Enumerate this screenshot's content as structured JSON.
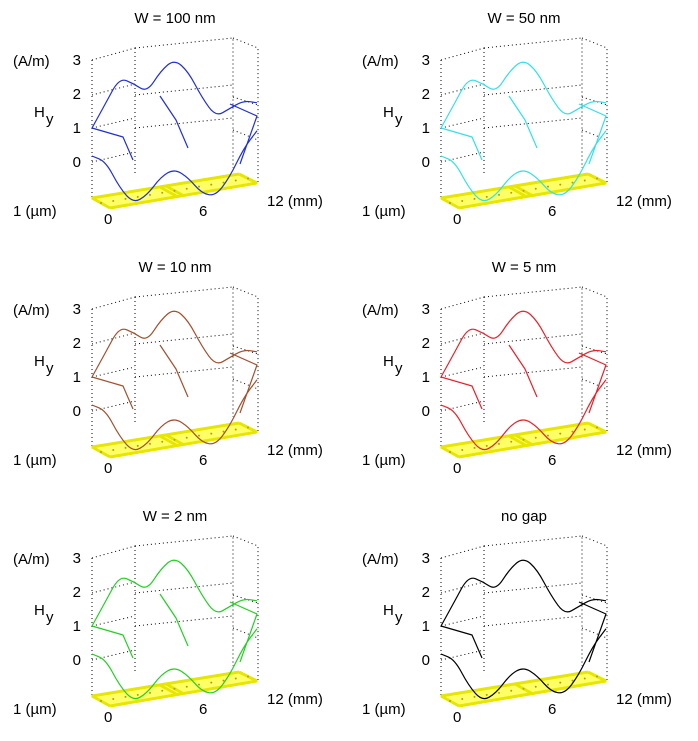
{
  "chart_data": [
    {
      "type": "line",
      "title": "W = 100 nm",
      "color": "#1f2fd6",
      "gap": true,
      "zlabel_unit": "(A/m)",
      "zlabel": "H",
      "zlabel_sub": "y",
      "z_ticks": [
        "3",
        "2",
        "1",
        "0"
      ],
      "x_tick_labels": [
        "0",
        "6",
        "12 (mm)"
      ],
      "y_tick_label": "1 (µm)",
      "x": [
        0,
        1,
        2,
        3,
        4,
        5,
        6,
        7,
        8,
        9,
        10,
        11,
        12
      ],
      "series": [
        {
          "values": [
            1.0,
            1.7,
            2.4,
            2.2,
            1.9,
            2.5,
            2.8,
            2.4,
            1.6,
            1.0,
            1.2,
            1.4,
            1.3
          ]
        },
        {
          "values": [
            1.0,
            0.8,
            0.0,
            -0.5,
            -0.3,
            0.2,
            0.4,
            0.1,
            -0.4,
            -0.5,
            0.0,
            0.8,
            1.3
          ]
        }
      ]
    },
    {
      "type": "line",
      "title": "W = 50 nm",
      "color": "#33e0e8",
      "gap": true,
      "zlabel_unit": "(A/m)",
      "zlabel": "H",
      "zlabel_sub": "y",
      "z_ticks": [
        "3",
        "2",
        "1",
        "0"
      ],
      "x_tick_labels": [
        "0",
        "6",
        "12 (mm)"
      ],
      "y_tick_label": "1 (µm)",
      "x": [
        0,
        1,
        2,
        3,
        4,
        5,
        6,
        7,
        8,
        9,
        10,
        11,
        12
      ],
      "series": [
        {
          "values": [
            1.0,
            1.7,
            2.4,
            2.2,
            1.9,
            2.5,
            2.8,
            2.4,
            1.6,
            1.0,
            1.2,
            1.4,
            1.3
          ]
        },
        {
          "values": [
            1.0,
            0.8,
            0.0,
            -0.5,
            -0.3,
            0.2,
            0.4,
            0.1,
            -0.4,
            -0.5,
            0.0,
            0.8,
            1.3
          ]
        }
      ]
    },
    {
      "type": "line",
      "title": "W = 10 nm",
      "color": "#a0502d",
      "gap": true,
      "zlabel_unit": "(A/m)",
      "zlabel": "H",
      "zlabel_sub": "y",
      "z_ticks": [
        "3",
        "2",
        "1",
        "0"
      ],
      "x_tick_labels": [
        "0",
        "6",
        "12 (mm)"
      ],
      "y_tick_label": "1 (µm)",
      "x": [
        0,
        1,
        2,
        3,
        4,
        5,
        6,
        7,
        8,
        9,
        10,
        11,
        12
      ],
      "series": [
        {
          "values": [
            1.0,
            1.7,
            2.4,
            2.2,
            1.9,
            2.5,
            2.8,
            2.4,
            1.6,
            1.0,
            1.2,
            1.4,
            1.3
          ]
        },
        {
          "values": [
            1.0,
            0.8,
            0.0,
            -0.5,
            -0.3,
            0.2,
            0.4,
            0.1,
            -0.4,
            -0.5,
            0.0,
            0.8,
            1.3
          ]
        }
      ]
    },
    {
      "type": "line",
      "title": "W = 5 nm",
      "color": "#e8202a",
      "gap": true,
      "zlabel_unit": "(A/m)",
      "zlabel": "H",
      "zlabel_sub": "y",
      "z_ticks": [
        "3",
        "2",
        "1",
        "0"
      ],
      "x_tick_labels": [
        "0",
        "6",
        "12 (mm)"
      ],
      "y_tick_label": "1 (µm)",
      "x": [
        0,
        1,
        2,
        3,
        4,
        5,
        6,
        7,
        8,
        9,
        10,
        11,
        12
      ],
      "series": [
        {
          "values": [
            1.0,
            1.7,
            2.4,
            2.2,
            1.9,
            2.5,
            2.8,
            2.4,
            1.6,
            1.0,
            1.2,
            1.4,
            1.3
          ]
        },
        {
          "values": [
            1.0,
            0.8,
            0.0,
            -0.5,
            -0.3,
            0.2,
            0.4,
            0.1,
            -0.4,
            -0.5,
            0.0,
            0.8,
            1.3
          ]
        }
      ]
    },
    {
      "type": "line",
      "title": "W = 2 nm",
      "color": "#22d022",
      "gap": true,
      "zlabel_unit": "(A/m)",
      "zlabel": "H",
      "zlabel_sub": "y",
      "z_ticks": [
        "3",
        "2",
        "1",
        "0"
      ],
      "x_tick_labels": [
        "0",
        "6",
        "12 (mm)"
      ],
      "y_tick_label": "1 (µm)",
      "x": [
        0,
        1,
        2,
        3,
        4,
        5,
        6,
        7,
        8,
        9,
        10,
        11,
        12
      ],
      "series": [
        {
          "values": [
            1.0,
            1.7,
            2.4,
            2.2,
            1.9,
            2.5,
            2.8,
            2.4,
            1.6,
            1.0,
            1.2,
            1.4,
            1.3
          ]
        },
        {
          "values": [
            1.0,
            0.8,
            0.0,
            -0.5,
            -0.3,
            0.2,
            0.4,
            0.1,
            -0.4,
            -0.5,
            0.0,
            0.8,
            1.3
          ]
        }
      ]
    },
    {
      "type": "line",
      "title": "no gap",
      "color": "#000000",
      "gap": false,
      "zlabel_unit": "(A/m)",
      "zlabel": "H",
      "zlabel_sub": "y",
      "z_ticks": [
        "3",
        "2",
        "1",
        "0"
      ],
      "x_tick_labels": [
        "0",
        "6",
        "12 (mm)"
      ],
      "y_tick_label": "1 (µm)",
      "x": [
        0,
        1,
        2,
        3,
        4,
        5,
        6,
        7,
        8,
        9,
        10,
        11,
        12
      ],
      "series": [
        {
          "values": [
            1.0,
            1.7,
            2.4,
            2.2,
            1.9,
            2.5,
            2.8,
            2.4,
            1.6,
            1.0,
            1.2,
            1.4,
            1.3
          ]
        },
        {
          "values": [
            1.0,
            0.8,
            0.0,
            -0.5,
            -0.3,
            0.2,
            0.4,
            0.1,
            -0.4,
            -0.5,
            0.0,
            0.8,
            1.3
          ]
        }
      ]
    }
  ]
}
